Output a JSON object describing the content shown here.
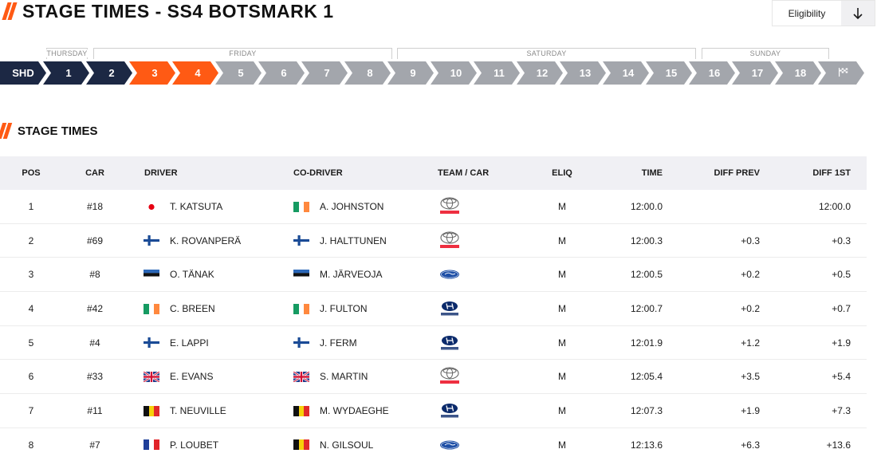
{
  "page": {
    "title": "STAGE TIMES - SS4 BOTSMARK 1",
    "eligibility_label": "Eligibility",
    "section_title": "STAGE TIMES"
  },
  "days": [
    {
      "label": "THURSDAY"
    },
    {
      "label": "FRIDAY"
    },
    {
      "label": "SATURDAY"
    },
    {
      "label": "SUNDAY"
    }
  ],
  "stages": [
    {
      "label": "SHD",
      "state": "completed"
    },
    {
      "label": "1",
      "state": "completed"
    },
    {
      "label": "2",
      "state": "completed"
    },
    {
      "label": "3",
      "state": "active"
    },
    {
      "label": "4",
      "state": "active"
    },
    {
      "label": "5",
      "state": "upcoming"
    },
    {
      "label": "6",
      "state": "upcoming"
    },
    {
      "label": "7",
      "state": "upcoming"
    },
    {
      "label": "8",
      "state": "upcoming"
    },
    {
      "label": "9",
      "state": "upcoming"
    },
    {
      "label": "10",
      "state": "upcoming"
    },
    {
      "label": "11",
      "state": "upcoming"
    },
    {
      "label": "12",
      "state": "upcoming"
    },
    {
      "label": "13",
      "state": "upcoming"
    },
    {
      "label": "14",
      "state": "upcoming"
    },
    {
      "label": "15",
      "state": "upcoming"
    },
    {
      "label": "16",
      "state": "upcoming"
    },
    {
      "label": "17",
      "state": "upcoming"
    },
    {
      "label": "18",
      "state": "upcoming"
    },
    {
      "label": "",
      "icon": "finish-flag-icon",
      "state": "upcoming"
    }
  ],
  "colors": {
    "accent": "#ff5a14",
    "completed": "#1c2844",
    "upcoming": "#a3a6ac",
    "header_bg": "#f0f0f4"
  },
  "table": {
    "headers": {
      "pos": "POS",
      "car": "CAR",
      "driver": "DRIVER",
      "codriver": "CO-DRIVER",
      "team": "TEAM / CAR",
      "eliq": "ELIQ",
      "time": "TIME",
      "diff_prev": "DIFF PREV",
      "diff_first": "DIFF 1ST"
    },
    "rows": [
      {
        "pos": "1",
        "car": "#18",
        "driver": "T. KATSUTA",
        "driver_flag": "japan-flag-icon",
        "codriver": "A. JOHNSTON",
        "codriver_flag": "ireland-flag-icon",
        "team_logo": "toyota-logo-icon",
        "eliq": "M",
        "time": "12:00.0",
        "diff_prev": "",
        "diff_first": "12:00.0"
      },
      {
        "pos": "2",
        "car": "#69",
        "driver": "K. ROVANPERÄ",
        "driver_flag": "finland-flag-icon",
        "codriver": "J. HALTTUNEN",
        "codriver_flag": "finland-flag-icon",
        "team_logo": "toyota-logo-icon",
        "eliq": "M",
        "time": "12:00.3",
        "diff_prev": "+0.3",
        "diff_first": "+0.3"
      },
      {
        "pos": "3",
        "car": "#8",
        "driver": "O. TÄNAK",
        "driver_flag": "estonia-flag-icon",
        "codriver": "M. JÄRVEOJA",
        "codriver_flag": "estonia-flag-icon",
        "team_logo": "ford-logo-icon",
        "eliq": "M",
        "time": "12:00.5",
        "diff_prev": "+0.2",
        "diff_first": "+0.5"
      },
      {
        "pos": "4",
        "car": "#42",
        "driver": "C. BREEN",
        "driver_flag": "ireland-flag-icon",
        "codriver": "J. FULTON",
        "codriver_flag": "ireland-flag-icon",
        "team_logo": "hyundai-logo-icon",
        "eliq": "M",
        "time": "12:00.7",
        "diff_prev": "+0.2",
        "diff_first": "+0.7"
      },
      {
        "pos": "5",
        "car": "#4",
        "driver": "E. LAPPI",
        "driver_flag": "finland-flag-icon",
        "codriver": "J. FERM",
        "codriver_flag": "finland-flag-icon",
        "team_logo": "hyundai-logo-icon",
        "eliq": "M",
        "time": "12:01.9",
        "diff_prev": "+1.2",
        "diff_first": "+1.9"
      },
      {
        "pos": "6",
        "car": "#33",
        "driver": "E. EVANS",
        "driver_flag": "uk-flag-icon",
        "codriver": "S. MARTIN",
        "codriver_flag": "uk-flag-icon",
        "team_logo": "toyota-logo-icon",
        "eliq": "M",
        "time": "12:05.4",
        "diff_prev": "+3.5",
        "diff_first": "+5.4"
      },
      {
        "pos": "7",
        "car": "#11",
        "driver": "T. NEUVILLE",
        "driver_flag": "belgium-flag-icon",
        "codriver": "M. WYDAEGHE",
        "codriver_flag": "belgium-flag-icon",
        "team_logo": "hyundai-logo-icon",
        "eliq": "M",
        "time": "12:07.3",
        "diff_prev": "+1.9",
        "diff_first": "+7.3"
      },
      {
        "pos": "8",
        "car": "#7",
        "driver": "P. LOUBET",
        "driver_flag": "france-flag-icon",
        "codriver": "N. GILSOUL",
        "codriver_flag": "belgium-flag-icon",
        "team_logo": "ford-logo-icon",
        "eliq": "M",
        "time": "12:13.6",
        "diff_prev": "+6.3",
        "diff_first": "+13.6"
      }
    ]
  }
}
